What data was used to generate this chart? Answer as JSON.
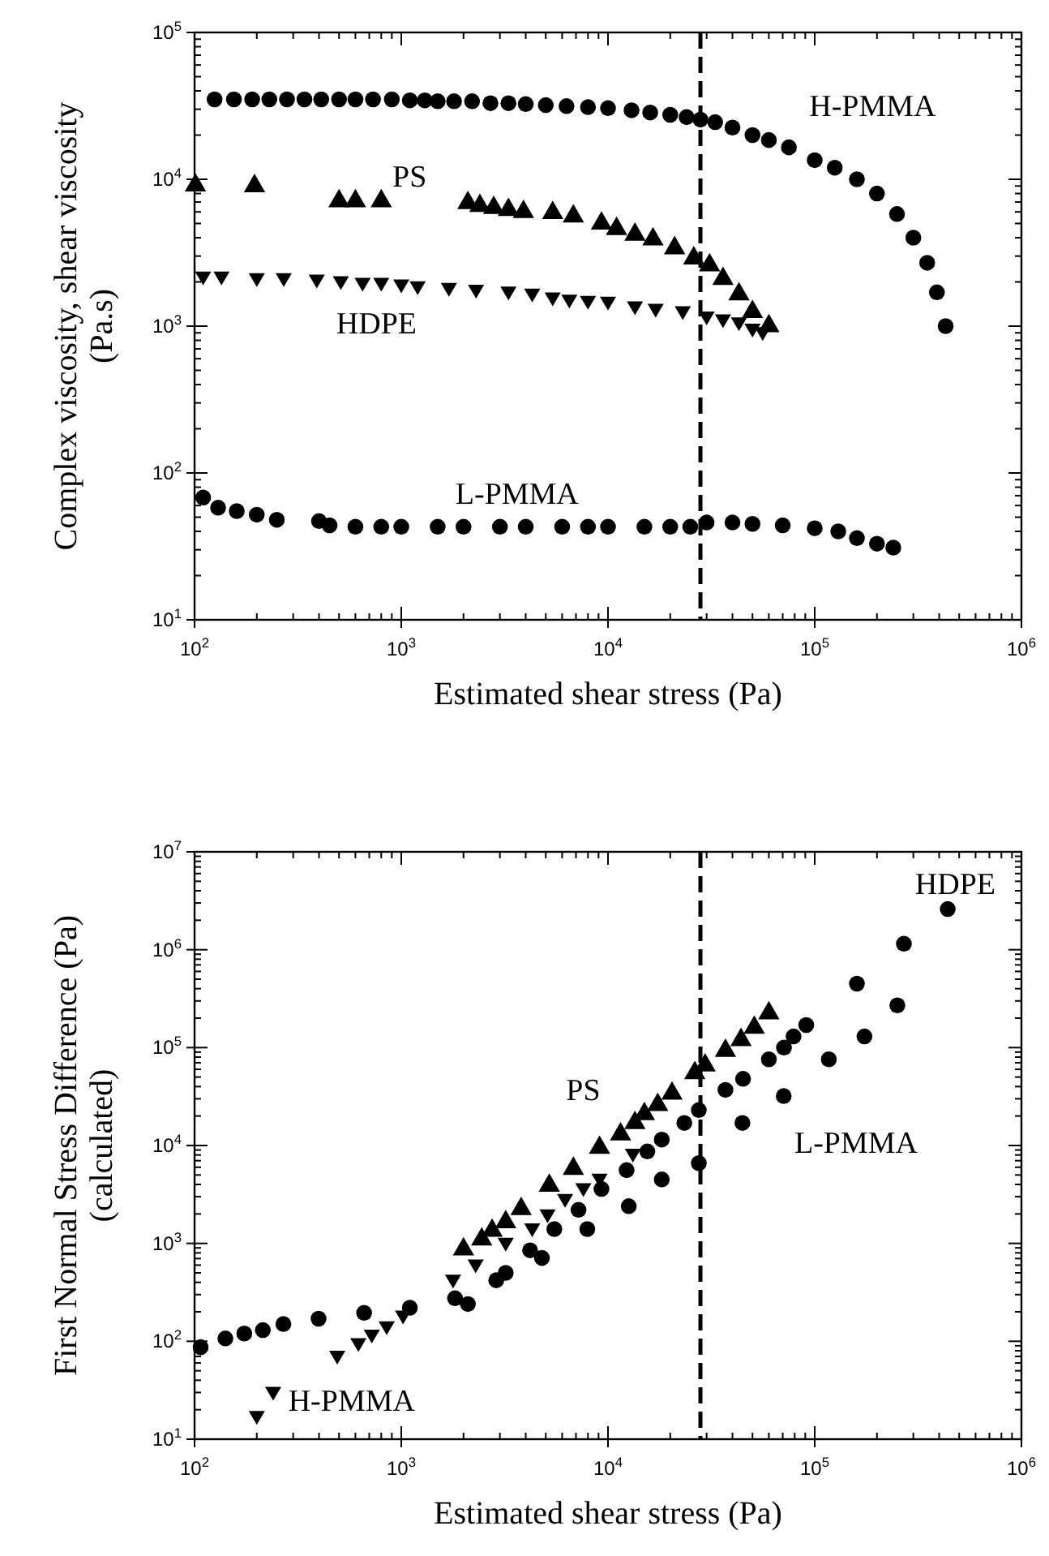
{
  "chart_data": [
    {
      "type": "scatter",
      "xlabel": "Estimated shear stress  (Pa)",
      "ylabel": "Complex  viscosity, shear viscosity\n(Pa.s)",
      "log": "xy",
      "xlim": [
        100,
        1000000
      ],
      "ylim": [
        10,
        100000
      ],
      "xticks": [
        {
          "value": 100,
          "label": "10$^{2}$"
        },
        {
          "value": 1000,
          "label": "10$^{3}$"
        },
        {
          "value": 10000,
          "label": "10$^{4}$"
        },
        {
          "value": 100000,
          "label": "10$^{5}$"
        },
        {
          "value": 1000000,
          "label": "10$^{6}$"
        }
      ],
      "yticks": [
        {
          "value": 10,
          "label": "10$^{1}$"
        },
        {
          "value": 100,
          "label": "10$^{2}$"
        },
        {
          "value": 1000,
          "label": "10$^{3}$"
        },
        {
          "value": 10000,
          "label": "10$^{4}$"
        },
        {
          "value": 100000,
          "label": "10$^{5}$"
        }
      ],
      "series": [
        {
          "name": "H-PMMA",
          "color": "#000000",
          "marker": "circle",
          "x": [
            125,
            155,
            190,
            230,
            280,
            340,
            410,
            500,
            600,
            730,
            900,
            1100,
            1300,
            1500,
            1800,
            2200,
            2700,
            3300,
            4000,
            5000,
            6300,
            8000,
            10000,
            13000,
            16000,
            20000,
            24000,
            28000,
            33000,
            40000,
            50000,
            60000,
            75000,
            100000,
            125000,
            160000,
            200000,
            250000,
            300000,
            350000,
            390000,
            430000
          ],
          "values": [
            35000,
            35000,
            35000,
            35000,
            35000,
            35000,
            35000,
            35000,
            35000,
            35000,
            35000,
            34500,
            34500,
            34000,
            34000,
            34000,
            33000,
            33000,
            32500,
            32000,
            31500,
            31000,
            30500,
            29500,
            28500,
            27500,
            26500,
            25500,
            24500,
            22500,
            20000,
            18500,
            16500,
            13500,
            12000,
            10000,
            8000,
            5800,
            4000,
            2700,
            1700,
            1000
          ]
        },
        {
          "name": "PS",
          "color": "#000000",
          "marker": "triangle",
          "x": [
            101,
            195,
            500,
            600,
            800,
            2100,
            2400,
            2800,
            3300,
            3900,
            5400,
            6800,
            9300,
            11000,
            13500,
            16500,
            21000,
            26000,
            31000,
            36000,
            43000,
            50000,
            60000
          ],
          "values": [
            9100,
            9000,
            7100,
            7100,
            7100,
            6900,
            6600,
            6400,
            6200,
            6000,
            5900,
            5600,
            5000,
            4600,
            4200,
            3900,
            3400,
            2900,
            2600,
            2100,
            1650,
            1250,
            1000
          ]
        },
        {
          "name": "HDPE",
          "color": "#000000",
          "marker": "triangle-down",
          "x": [
            110,
            135,
            200,
            270,
            390,
            510,
            650,
            800,
            1000,
            1200,
            1700,
            2300,
            3300,
            4300,
            5400,
            6500,
            8000,
            10000,
            13500,
            17000,
            23000,
            30000,
            36000,
            43000,
            50000,
            56000
          ],
          "values": [
            2150,
            2150,
            2100,
            2100,
            2050,
            2000,
            1950,
            1950,
            1900,
            1850,
            1800,
            1750,
            1700,
            1650,
            1550,
            1500,
            1470,
            1450,
            1350,
            1300,
            1250,
            1150,
            1100,
            1050,
            950,
            900
          ]
        },
        {
          "name": "L-PMMA",
          "color": "#000000",
          "marker": "circle",
          "x": [
            110,
            130,
            160,
            200,
            250,
            400,
            450,
            600,
            800,
            1000,
            1500,
            2000,
            3000,
            4000,
            6000,
            8000,
            10000,
            15000,
            20000,
            25000,
            30000,
            40000,
            50000,
            70000,
            100000,
            130000,
            160000,
            200000,
            240000
          ],
          "values": [
            68,
            58,
            55,
            52,
            48,
            47,
            44,
            43,
            43,
            43,
            43,
            43,
            43,
            43,
            43,
            43,
            43,
            43,
            43,
            43,
            46,
            46,
            45,
            44,
            42,
            40,
            36,
            33,
            31
          ]
        }
      ],
      "ref_lines": [
        {
          "axis": "x",
          "value": 28000,
          "line_style": "dashed",
          "color": "#000000"
        }
      ],
      "grid": false
    },
    {
      "type": "scatter",
      "xlabel": "Estimated shear stress  (Pa)",
      "ylabel": "First Normal Stress Difference (Pa)\n(calculated)",
      "log": "xy",
      "xlim": [
        100,
        1000000
      ],
      "ylim": [
        10,
        10000000
      ],
      "xticks": [
        {
          "value": 100,
          "label": "10$^{2}$"
        },
        {
          "value": 1000,
          "label": "10$^{3}$"
        },
        {
          "value": 10000,
          "label": "10$^{4}$"
        },
        {
          "value": 100000,
          "label": "10$^{5}$"
        },
        {
          "value": 1000000,
          "label": "10$^{6}$"
        }
      ],
      "yticks": [
        {
          "value": 10,
          "label": "10$^{1}$"
        },
        {
          "value": 100,
          "label": "10$^{2}$"
        },
        {
          "value": 1000,
          "label": "10$^{3}$"
        },
        {
          "value": 10000,
          "label": "10$^{4}$"
        },
        {
          "value": 100000,
          "label": "10$^{5}$"
        },
        {
          "value": 1000000,
          "label": "10$^{6}$"
        },
        {
          "value": 10000000,
          "label": "10$^{7}$"
        }
      ],
      "series": [
        {
          "name": "HDPE",
          "color": "#000000",
          "marker": "circle",
          "x": [
            2100,
            3200,
            4200,
            5500,
            7200,
            9300,
            12300,
            15500,
            18200,
            23400,
            27500,
            37000,
            45000,
            60000,
            71000,
            79000,
            91000,
            160000,
            270000,
            440000
          ],
          "values": [
            240,
            500,
            850,
            1400,
            2200,
            3600,
            5600,
            8700,
            11500,
            17000,
            23000,
            37000,
            48000,
            76000,
            100000,
            130000,
            170000,
            450000,
            1150000,
            2600000
          ]
        },
        {
          "name": "PS",
          "color": "#000000",
          "marker": "triangle",
          "x": [
            2000,
            2450,
            2750,
            3200,
            3800,
            5200,
            6800,
            9100,
            11500,
            13500,
            15000,
            17400,
            20400,
            26300,
            29500,
            37000,
            44000,
            51000,
            60000
          ],
          "values": [
            870,
            1100,
            1350,
            1650,
            2250,
            3900,
            5800,
            9500,
            13000,
            17000,
            21000,
            26000,
            34000,
            55000,
            66000,
            93000,
            120000,
            160000,
            225000
          ]
        },
        {
          "name": "H-PMMA",
          "color": "#000000",
          "marker": "triangle-down",
          "x": [
            200,
            240,
            490,
            620,
            720,
            850,
            1020,
            1780,
            2290,
            3200,
            4300,
            5100,
            6200,
            7600,
            9100,
            13200
          ],
          "values": [
            17,
            30,
            70,
            94,
            115,
            140,
            180,
            420,
            600,
            1000,
            1400,
            1950,
            2800,
            3600,
            4500,
            8100
          ]
        },
        {
          "name": "L-PMMA",
          "color": "#000000",
          "marker": "circle",
          "x": [
            107,
            141,
            174,
            214,
            269,
            398,
            661,
            1100,
            1820,
            2880,
            4790,
            7940,
            12600,
            18200,
            27500,
            44700,
            70800,
            117000,
            174000,
            251000
          ],
          "values": [
            87,
            107,
            120,
            130,
            150,
            170,
            195,
            220,
            275,
            420,
            710,
            1400,
            2400,
            4500,
            6600,
            17000,
            32000,
            76000,
            130000,
            270000
          ]
        }
      ],
      "ref_lines": [
        {
          "axis": "x",
          "value": 28000,
          "line_style": "dashed",
          "color": "#000000"
        }
      ],
      "grid": false
    }
  ]
}
